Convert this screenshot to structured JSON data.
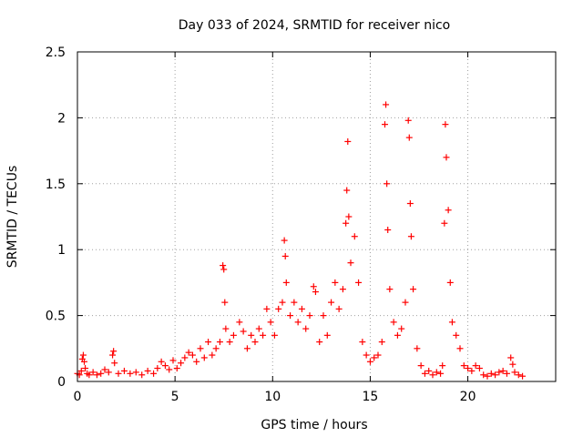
{
  "chart_data": {
    "type": "scatter",
    "title": "Day 033 of 2024, SRMTID for receiver nico",
    "xlabel": "GPS time / hours",
    "ylabel": "SRMTID / TECUs",
    "xlim": [
      0,
      24.5
    ],
    "ylim": [
      0,
      2.5
    ],
    "xticks": [
      0,
      5,
      10,
      15,
      20
    ],
    "yticks": [
      0,
      0.5,
      1,
      1.5,
      2,
      2.5
    ],
    "xtick_labels": [
      "0",
      "5",
      "10",
      "15",
      "20"
    ],
    "ytick_labels": [
      "0",
      "0.5",
      "1",
      "1.5",
      "2",
      "2.5"
    ],
    "grid": true,
    "marker": "+",
    "color": "#ff0000",
    "series": [
      {
        "name": "SRMTID",
        "points": [
          [
            0.0,
            0.06
          ],
          [
            0.1,
            0.05
          ],
          [
            0.2,
            0.08
          ],
          [
            0.25,
            0.17
          ],
          [
            0.3,
            0.2
          ],
          [
            0.35,
            0.15
          ],
          [
            0.4,
            0.1
          ],
          [
            0.5,
            0.06
          ],
          [
            0.6,
            0.05
          ],
          [
            0.8,
            0.07
          ],
          [
            1.0,
            0.05
          ],
          [
            1.2,
            0.06
          ],
          [
            1.4,
            0.09
          ],
          [
            1.6,
            0.07
          ],
          [
            1.8,
            0.2
          ],
          [
            1.85,
            0.23
          ],
          [
            1.9,
            0.14
          ],
          [
            2.1,
            0.06
          ],
          [
            2.4,
            0.08
          ],
          [
            2.7,
            0.06
          ],
          [
            3.0,
            0.07
          ],
          [
            3.3,
            0.05
          ],
          [
            3.6,
            0.08
          ],
          [
            3.9,
            0.06
          ],
          [
            4.1,
            0.1
          ],
          [
            4.3,
            0.15
          ],
          [
            4.5,
            0.12
          ],
          [
            4.7,
            0.09
          ],
          [
            4.9,
            0.16
          ],
          [
            5.1,
            0.1
          ],
          [
            5.3,
            0.14
          ],
          [
            5.5,
            0.18
          ],
          [
            5.7,
            0.22
          ],
          [
            5.9,
            0.2
          ],
          [
            6.1,
            0.15
          ],
          [
            6.3,
            0.25
          ],
          [
            6.5,
            0.18
          ],
          [
            6.7,
            0.3
          ],
          [
            6.9,
            0.2
          ],
          [
            7.1,
            0.25
          ],
          [
            7.3,
            0.3
          ],
          [
            7.45,
            0.88
          ],
          [
            7.5,
            0.85
          ],
          [
            7.55,
            0.6
          ],
          [
            7.6,
            0.4
          ],
          [
            7.8,
            0.3
          ],
          [
            8.0,
            0.35
          ],
          [
            8.3,
            0.45
          ],
          [
            8.5,
            0.38
          ],
          [
            8.7,
            0.25
          ],
          [
            8.9,
            0.35
          ],
          [
            9.1,
            0.3
          ],
          [
            9.3,
            0.4
          ],
          [
            9.5,
            0.35
          ],
          [
            9.7,
            0.55
          ],
          [
            9.9,
            0.45
          ],
          [
            10.1,
            0.35
          ],
          [
            10.3,
            0.55
          ],
          [
            10.5,
            0.6
          ],
          [
            10.6,
            1.07
          ],
          [
            10.65,
            0.95
          ],
          [
            10.7,
            0.75
          ],
          [
            10.9,
            0.5
          ],
          [
            11.1,
            0.6
          ],
          [
            11.3,
            0.45
          ],
          [
            11.5,
            0.55
          ],
          [
            11.7,
            0.4
          ],
          [
            11.9,
            0.5
          ],
          [
            12.1,
            0.72
          ],
          [
            12.2,
            0.68
          ],
          [
            12.4,
            0.3
          ],
          [
            12.6,
            0.5
          ],
          [
            12.8,
            0.35
          ],
          [
            13.0,
            0.6
          ],
          [
            13.2,
            0.75
          ],
          [
            13.4,
            0.55
          ],
          [
            13.6,
            0.7
          ],
          [
            13.75,
            1.2
          ],
          [
            13.8,
            1.45
          ],
          [
            13.85,
            1.82
          ],
          [
            13.9,
            1.25
          ],
          [
            14.0,
            0.9
          ],
          [
            14.2,
            1.1
          ],
          [
            14.4,
            0.75
          ],
          [
            14.6,
            0.3
          ],
          [
            14.8,
            0.2
          ],
          [
            15.0,
            0.15
          ],
          [
            15.2,
            0.18
          ],
          [
            15.4,
            0.2
          ],
          [
            15.6,
            0.3
          ],
          [
            15.75,
            1.95
          ],
          [
            15.8,
            2.1
          ],
          [
            15.85,
            1.5
          ],
          [
            15.9,
            1.15
          ],
          [
            16.0,
            0.7
          ],
          [
            16.2,
            0.45
          ],
          [
            16.4,
            0.35
          ],
          [
            16.6,
            0.4
          ],
          [
            16.8,
            0.6
          ],
          [
            16.95,
            1.98
          ],
          [
            17.0,
            1.85
          ],
          [
            17.05,
            1.35
          ],
          [
            17.1,
            1.1
          ],
          [
            17.2,
            0.7
          ],
          [
            17.4,
            0.25
          ],
          [
            17.6,
            0.12
          ],
          [
            17.8,
            0.06
          ],
          [
            18.0,
            0.08
          ],
          [
            18.2,
            0.05
          ],
          [
            18.4,
            0.07
          ],
          [
            18.6,
            0.06
          ],
          [
            18.7,
            0.12
          ],
          [
            18.8,
            1.2
          ],
          [
            18.85,
            1.95
          ],
          [
            18.9,
            1.7
          ],
          [
            19.0,
            1.3
          ],
          [
            19.1,
            0.75
          ],
          [
            19.2,
            0.45
          ],
          [
            19.4,
            0.35
          ],
          [
            19.6,
            0.25
          ],
          [
            19.8,
            0.12
          ],
          [
            20.0,
            0.1
          ],
          [
            20.2,
            0.08
          ],
          [
            20.4,
            0.12
          ],
          [
            20.6,
            0.1
          ],
          [
            20.8,
            0.05
          ],
          [
            21.0,
            0.04
          ],
          [
            21.2,
            0.06
          ],
          [
            21.4,
            0.05
          ],
          [
            21.6,
            0.07
          ],
          [
            21.8,
            0.08
          ],
          [
            22.0,
            0.06
          ],
          [
            22.2,
            0.18
          ],
          [
            22.3,
            0.13
          ],
          [
            22.4,
            0.07
          ],
          [
            22.6,
            0.05
          ],
          [
            22.8,
            0.04
          ]
        ]
      }
    ]
  }
}
